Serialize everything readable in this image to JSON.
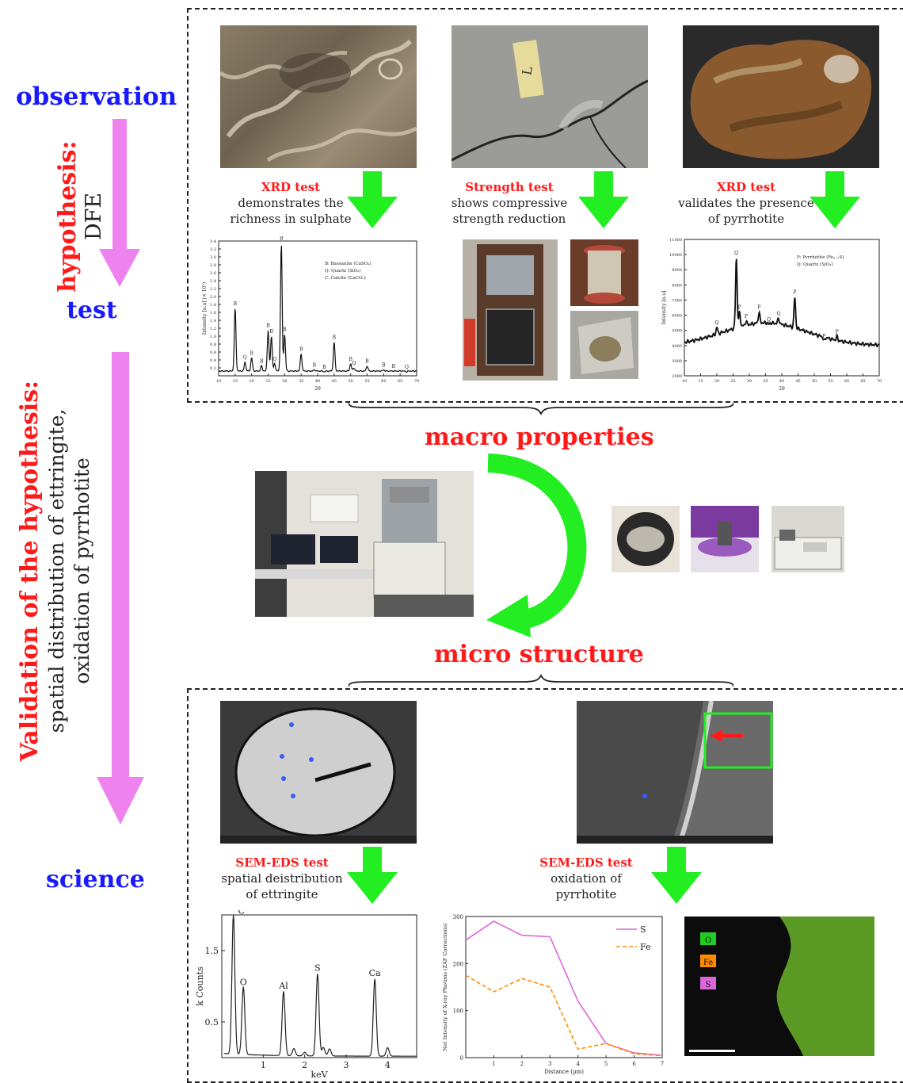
{
  "left": {
    "observation": "observation",
    "hypothesis_title": "hypothesis:",
    "hypothesis_sub": "DFE",
    "test": "test",
    "validation_title": "Validation of the hypothesis:",
    "validation_sub1": "spatial distribution of ettringite,",
    "validation_sub2": "oxidation of pyrrhotite",
    "science": "science"
  },
  "colors": {
    "arrow_pink": "#ee82ee",
    "arrow_green": "#22ee22",
    "accent_red": "#ff1a1a",
    "accent_blue": "#1a1aff"
  },
  "top": {
    "cap1_title": "XRD test",
    "cap1_l1": "demonstrates the",
    "cap1_l2": "richness in sulphate",
    "cap2_title": "Strength test",
    "cap2_l1": "shows compressive",
    "cap2_l2": "strength reduction",
    "cap3_title": "XRD test",
    "cap3_l1": "validates the presence",
    "cap3_l2": "of pyrrhotite",
    "label_l": "L"
  },
  "middle": {
    "macro": "macro properties",
    "micro": "micro structure"
  },
  "bottom": {
    "cap1_title": "SEM-EDS test",
    "cap1_l1": "spatial deistribution",
    "cap1_l2": "of ettringite",
    "cap2_title": "SEM-EDS test",
    "cap2_l1": "oxidation of",
    "cap2_l2": "pyrrhotite",
    "legend_o": "O",
    "legend_fe": "Fe",
    "legend_s": "S"
  },
  "chart_data": [
    {
      "type": "line",
      "title": "",
      "xlabel": "2θ",
      "ylabel": "Intensity [a.u] (× 10³)",
      "ylim": [
        0,
        3.4
      ],
      "yticks": [
        "0.2",
        "0.4",
        "0.6",
        "0.8",
        "1.0",
        "1.2",
        "1.4",
        "1.6",
        "1.8",
        "2.0",
        "2.2",
        "2.4",
        "2.6",
        "2.8",
        "3.0",
        "3.2",
        "3.4"
      ],
      "xlim": [
        10,
        70
      ],
      "legend": [
        "B: Bassanite (CaSO₄)",
        "Q: Quartz (SiO₂)",
        "C: Calcite (CaCO₃)"
      ],
      "peaks": [
        {
          "x": 15,
          "y": 1.7,
          "label": "B"
        },
        {
          "x": 18,
          "y": 0.35,
          "label": "Q"
        },
        {
          "x": 20,
          "y": 0.45,
          "label": "B"
        },
        {
          "x": 23,
          "y": 0.25,
          "label": "B"
        },
        {
          "x": 25,
          "y": 1.15,
          "label": "B"
        },
        {
          "x": 26,
          "y": 1.0,
          "label": "B"
        },
        {
          "x": 27,
          "y": 0.3,
          "label": "Q"
        },
        {
          "x": 29,
          "y": 3.35,
          "label": "B"
        },
        {
          "x": 30,
          "y": 1.05,
          "label": "B"
        },
        {
          "x": 35,
          "y": 0.55,
          "label": "B"
        },
        {
          "x": 39,
          "y": 0.15,
          "label": "B"
        },
        {
          "x": 42,
          "y": 0.1,
          "label": "B"
        },
        {
          "x": 45,
          "y": 0.85,
          "label": "B"
        },
        {
          "x": 50,
          "y": 0.3,
          "label": "B"
        },
        {
          "x": 51,
          "y": 0.2,
          "label": "Q"
        },
        {
          "x": 55,
          "y": 0.25,
          "label": "B"
        },
        {
          "x": 60,
          "y": 0.15,
          "label": "B"
        },
        {
          "x": 63,
          "y": 0.12,
          "label": "B"
        },
        {
          "x": 67,
          "y": 0.1,
          "label": "Q"
        }
      ]
    },
    {
      "type": "line",
      "title": "",
      "xlabel": "2θ",
      "ylabel": "Intensity [a.u]",
      "ylim": [
        2000,
        11000
      ],
      "yticks": [
        "2000",
        "3000",
        "4000",
        "5000",
        "6000",
        "7000",
        "8000",
        "9000",
        "10000",
        "11000"
      ],
      "xlim": [
        10,
        70
      ],
      "legend": [
        "P: Pyrrhotite (Fe₁₋ₓS)",
        "Q: Quartz (SiO₂)"
      ],
      "peaks": [
        {
          "x": 20,
          "y": 5200,
          "label": "Q"
        },
        {
          "x": 26,
          "y": 9800,
          "label": "Q"
        },
        {
          "x": 27,
          "y": 6200,
          "label": "P"
        },
        {
          "x": 29,
          "y": 5600,
          "label": "P"
        },
        {
          "x": 33,
          "y": 6200,
          "label": "P"
        },
        {
          "x": 36,
          "y": 5400,
          "label": "Q"
        },
        {
          "x": 39,
          "y": 5800,
          "label": "Q"
        },
        {
          "x": 44,
          "y": 7200,
          "label": "P"
        },
        {
          "x": 53,
          "y": 4300,
          "label": "P"
        },
        {
          "x": 57,
          "y": 4600,
          "label": "P"
        }
      ]
    },
    {
      "type": "line",
      "title": "",
      "xlabel": "keV",
      "ylabel": "k Counts",
      "yticks": [
        "0.5",
        "1.5"
      ],
      "xticks": [
        "1",
        "2",
        "3",
        "4"
      ],
      "xlim": [
        0,
        4.7
      ],
      "ylim": [
        0,
        2.0
      ],
      "peaks": [
        {
          "x": 0.28,
          "y": 1.95,
          "label": "C"
        },
        {
          "x": 0.52,
          "y": 0.95,
          "label": "O"
        },
        {
          "x": 1.49,
          "y": 0.9,
          "label": "Al"
        },
        {
          "x": 2.31,
          "y": 1.15,
          "label": "S"
        },
        {
          "x": 3.69,
          "y": 1.08,
          "label": "Ca"
        }
      ]
    },
    {
      "type": "line",
      "title": "",
      "xlabel": "Distance (µm)",
      "ylabel": "Net Intensity of X-ray Photons (ZAF Corrections)",
      "xticks": [
        "1",
        "2",
        "3",
        "4",
        "5",
        "6",
        "7"
      ],
      "xlim": [
        0,
        7
      ],
      "ylim": [
        0,
        300
      ],
      "yticks": [
        "0",
        "100",
        "200",
        "300"
      ],
      "series": [
        {
          "name": "S",
          "x": [
            0,
            1,
            2,
            3,
            4,
            5,
            6,
            7
          ],
          "values": [
            250,
            290,
            260,
            257,
            120,
            30,
            10,
            5
          ]
        },
        {
          "name": "Fe",
          "x": [
            0,
            1,
            2,
            3,
            4,
            5,
            6,
            7
          ],
          "values": [
            175,
            140,
            168,
            150,
            18,
            30,
            8,
            4
          ]
        }
      ]
    }
  ]
}
